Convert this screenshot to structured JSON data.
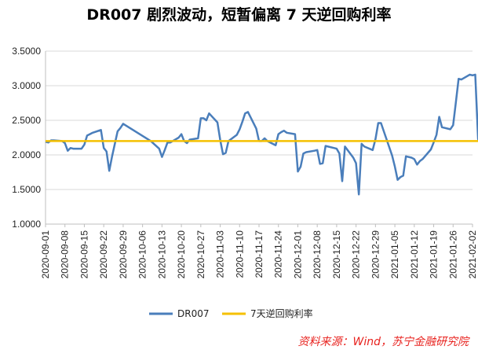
{
  "title": "DR007 剧烈波动，短暂偏离 7 天逆回购利率",
  "source": "资料来源：Wind，苏宁金融研究院",
  "colors": {
    "series_dr007": "#4a7ebb",
    "series_reverse_repo": "#f5c000",
    "grid": "#d9d9d9",
    "axis": "#bfbfbf"
  },
  "chart_data": {
    "type": "line",
    "title": "DR007 剧烈波动，短暂偏离 7 天逆回购利率",
    "xlabel": "",
    "ylabel": "",
    "ylim": [
      1.0,
      3.5
    ],
    "yticks": [
      "1.0000",
      "1.5000",
      "2.0000",
      "2.5000",
      "3.0000",
      "3.5000"
    ],
    "xlim": [
      "2020-09-01",
      "2021-02-02"
    ],
    "xticks": [
      "2020-09-01",
      "2020-09-08",
      "2020-09-15",
      "2020-09-22",
      "2020-09-29",
      "2020-10-06",
      "2020-10-13",
      "2020-10-20",
      "2020-10-27",
      "2020-11-03",
      "2020-11-10",
      "2020-11-17",
      "2020-11-24",
      "2020-12-01",
      "2020-12-08",
      "2020-12-15",
      "2020-12-22",
      "2020-12-29",
      "2021-01-05",
      "2021-01-12",
      "2021-01-19",
      "2021-01-26",
      "2021-02-02"
    ],
    "grid": true,
    "legend": "bottom",
    "series": [
      {
        "name": "DR007",
        "points": [
          [
            "2020-09-01",
            2.19
          ],
          [
            "2020-09-02",
            2.18
          ],
          [
            "2020-09-03",
            2.21
          ],
          [
            "2020-09-04",
            2.21
          ],
          [
            "2020-09-07",
            2.2
          ],
          [
            "2020-09-08",
            2.17
          ],
          [
            "2020-09-09",
            2.06
          ],
          [
            "2020-09-10",
            2.1
          ],
          [
            "2020-09-11",
            2.09
          ],
          [
            "2020-09-14",
            2.09
          ],
          [
            "2020-09-15",
            2.15
          ],
          [
            "2020-09-16",
            2.28
          ],
          [
            "2020-09-17",
            2.3
          ],
          [
            "2020-09-18",
            2.32
          ],
          [
            "2020-09-21",
            2.36
          ],
          [
            "2020-09-22",
            2.1
          ],
          [
            "2020-09-23",
            2.05
          ],
          [
            "2020-09-24",
            1.77
          ],
          [
            "2020-09-25",
            1.98
          ],
          [
            "2020-09-27",
            2.34
          ],
          [
            "2020-09-28",
            2.39
          ],
          [
            "2020-09-29",
            2.45
          ],
          [
            "2020-10-09",
            2.2
          ],
          [
            "2020-10-12",
            2.09
          ],
          [
            "2020-10-13",
            1.97
          ],
          [
            "2020-10-14",
            2.07
          ],
          [
            "2020-10-15",
            2.18
          ],
          [
            "2020-10-16",
            2.18
          ],
          [
            "2020-10-19",
            2.25
          ],
          [
            "2020-10-20",
            2.3
          ],
          [
            "2020-10-21",
            2.2
          ],
          [
            "2020-10-22",
            2.17
          ],
          [
            "2020-10-23",
            2.22
          ],
          [
            "2020-10-26",
            2.24
          ],
          [
            "2020-10-27",
            2.53
          ],
          [
            "2020-10-28",
            2.53
          ],
          [
            "2020-10-29",
            2.5
          ],
          [
            "2020-10-30",
            2.6
          ],
          [
            "2020-11-02",
            2.47
          ],
          [
            "2020-11-03",
            2.22
          ],
          [
            "2020-11-04",
            2.01
          ],
          [
            "2020-11-05",
            2.03
          ],
          [
            "2020-11-06",
            2.2
          ],
          [
            "2020-11-09",
            2.29
          ],
          [
            "2020-11-10",
            2.37
          ],
          [
            "2020-11-11",
            2.48
          ],
          [
            "2020-11-12",
            2.6
          ],
          [
            "2020-11-13",
            2.62
          ],
          [
            "2020-11-16",
            2.38
          ],
          [
            "2020-11-17",
            2.2
          ],
          [
            "2020-11-18",
            2.2
          ],
          [
            "2020-11-19",
            2.24
          ],
          [
            "2020-11-20",
            2.2
          ],
          [
            "2020-11-23",
            2.14
          ],
          [
            "2020-11-24",
            2.3
          ],
          [
            "2020-11-25",
            2.33
          ],
          [
            "2020-11-26",
            2.35
          ],
          [
            "2020-11-27",
            2.32
          ],
          [
            "2020-11-30",
            2.3
          ],
          [
            "2020-12-01",
            1.76
          ],
          [
            "2020-12-02",
            1.83
          ],
          [
            "2020-12-03",
            2.02
          ],
          [
            "2020-12-04",
            2.04
          ],
          [
            "2020-12-07",
            2.06
          ],
          [
            "2020-12-08",
            2.07
          ],
          [
            "2020-12-09",
            1.87
          ],
          [
            "2020-12-10",
            1.88
          ],
          [
            "2020-12-11",
            2.13
          ],
          [
            "2020-12-14",
            2.1
          ],
          [
            "2020-12-15",
            2.09
          ],
          [
            "2020-12-16",
            2.02
          ],
          [
            "2020-12-17",
            1.62
          ],
          [
            "2020-12-18",
            2.12
          ],
          [
            "2020-12-21",
            1.96
          ],
          [
            "2020-12-22",
            1.88
          ],
          [
            "2020-12-23",
            1.43
          ],
          [
            "2020-12-24",
            2.16
          ],
          [
            "2020-12-25",
            2.12
          ],
          [
            "2020-12-28",
            2.07
          ],
          [
            "2020-12-29",
            2.23
          ],
          [
            "2020-12-30",
            2.46
          ],
          [
            "2020-12-31",
            2.46
          ],
          [
            "2021-01-04",
            1.99
          ],
          [
            "2021-01-05",
            1.83
          ],
          [
            "2021-01-06",
            1.64
          ],
          [
            "2021-01-07",
            1.68
          ],
          [
            "2021-01-08",
            1.7
          ],
          [
            "2021-01-09",
            1.98
          ],
          [
            "2021-01-11",
            1.96
          ],
          [
            "2021-01-12",
            1.94
          ],
          [
            "2021-01-13",
            1.86
          ],
          [
            "2021-01-14",
            1.91
          ],
          [
            "2021-01-15",
            1.94
          ],
          [
            "2021-01-18",
            2.08
          ],
          [
            "2021-01-19",
            2.18
          ],
          [
            "2021-01-20",
            2.29
          ],
          [
            "2021-01-21",
            2.55
          ],
          [
            "2021-01-22",
            2.4
          ],
          [
            "2021-01-25",
            2.37
          ],
          [
            "2021-01-26",
            2.43
          ],
          [
            "2021-01-27",
            2.76
          ],
          [
            "2021-01-28",
            3.1
          ],
          [
            "2021-01-29",
            3.09
          ],
          [
            "2021-02-01",
            3.16
          ],
          [
            "2021-02-02",
            3.15
          ],
          [
            "2021-02-03",
            3.16
          ],
          [
            "2021-02-04",
            2.23
          ],
          [
            "2021-02-05",
            2.12
          ]
        ]
      },
      {
        "name": "7天逆回购利率",
        "points": [
          [
            "2020-09-01",
            2.2
          ],
          [
            "2021-02-05",
            2.2
          ]
        ]
      }
    ]
  }
}
